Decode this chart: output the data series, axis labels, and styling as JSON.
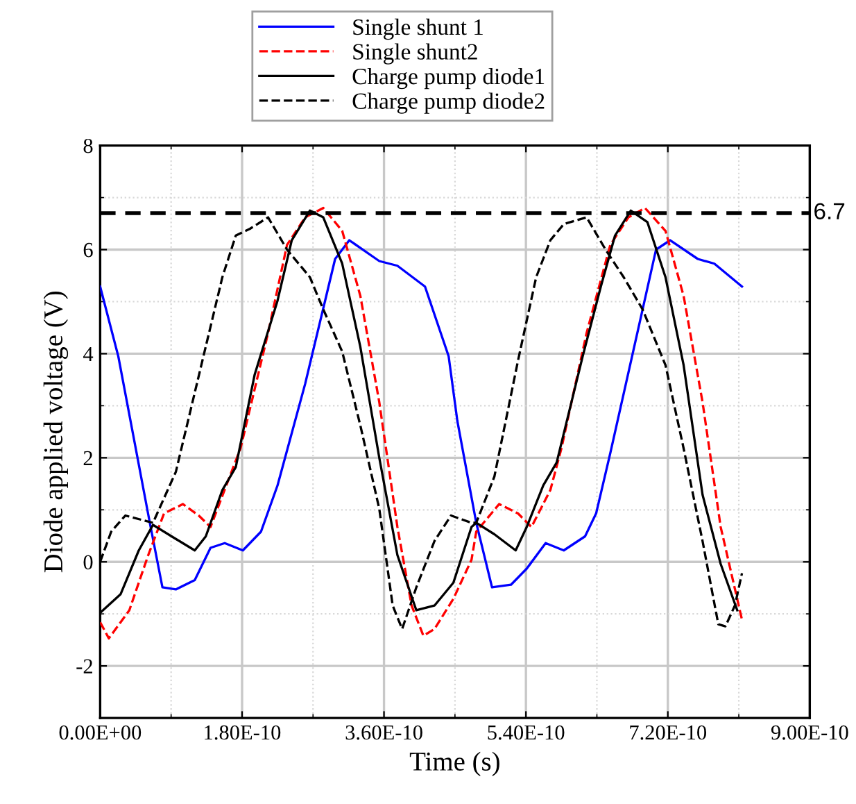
{
  "chart_data": {
    "type": "line",
    "xlabel": "Time (s)",
    "ylabel": "Diode applied voltage (V)",
    "xlim": [
      0,
      9e-10
    ],
    "xticks": [
      {
        "value": 0,
        "label": "0.00E+00"
      },
      {
        "value": 1.8e-10,
        "label": "1.80E-10"
      },
      {
        "value": 3.6e-10,
        "label": "3.60E-10"
      },
      {
        "value": 5.4e-10,
        "label": "5.40E-10"
      },
      {
        "value": 7.2e-10,
        "label": "7.20E-10"
      },
      {
        "value": 9e-10,
        "label": "9.00E-10"
      }
    ],
    "ylim": [
      -3,
      8
    ],
    "yticks": [
      -2,
      0,
      2,
      4,
      6,
      8
    ],
    "grid": true,
    "legend": "top",
    "ref_lines": [
      {
        "axis": "y",
        "value": 6.7,
        "label": "6.7",
        "color": "#000000",
        "line_style": "dashed"
      }
    ],
    "series": [
      {
        "name": "Single shunt 1",
        "color": "#0000ff",
        "line_style": "solid",
        "x": [
          0,
          2.3e-11,
          6.3e-11,
          7.9e-11,
          9.6e-11,
          1.2e-10,
          1.4e-10,
          1.58e-10,
          1.81e-10,
          2.04e-10,
          2.25e-10,
          2.6e-10,
          2.98e-10,
          3.16e-10,
          3.54e-10,
          3.77e-10,
          4.12e-10,
          4.42e-10,
          4.53e-10,
          4.77e-10,
          4.97e-10,
          5.21e-10,
          5.41e-10,
          5.65e-10,
          5.88e-10,
          6.15e-10,
          6.29e-10,
          6.47e-10,
          6.88e-10,
          7.05e-10,
          7.23e-10,
          7.58e-10,
          7.79e-10,
          8.14e-10
        ],
        "values": [
          5.29,
          3.95,
          0.75,
          -0.49,
          -0.53,
          -0.35,
          0.27,
          0.36,
          0.22,
          0.58,
          1.47,
          3.42,
          5.82,
          6.18,
          5.78,
          5.69,
          5.29,
          3.95,
          2.71,
          0.75,
          -0.49,
          -0.44,
          -0.13,
          0.36,
          0.22,
          0.49,
          0.93,
          2.09,
          4.85,
          6.0,
          6.18,
          5.82,
          5.73,
          5.29
        ]
      },
      {
        "name": "Single shunt2",
        "color": "#ff0000",
        "line_style": "dashed",
        "x": [
          0,
          1.1e-11,
          3.7e-11,
          6.1e-11,
          8.1e-11,
          1.05e-10,
          1.25e-10,
          1.4e-10,
          1.6e-10,
          1.78e-10,
          2.13e-10,
          2.37e-10,
          2.6e-10,
          2.83e-10,
          3.07e-10,
          3.3e-10,
          3.54e-10,
          3.77e-10,
          3.95e-10,
          4.1e-10,
          4.24e-10,
          4.48e-10,
          4.71e-10,
          4.77e-10,
          5.06e-10,
          5.3e-10,
          5.47e-10,
          5.71e-10,
          5.85e-10,
          6.17e-10,
          6.47e-10,
          6.7e-10,
          6.91e-10,
          7.17e-10,
          7.4e-10,
          7.64e-10,
          7.87e-10,
          8.14e-10
        ],
        "values": [
          -1.16,
          -1.47,
          -0.93,
          0.13,
          0.93,
          1.11,
          0.89,
          0.67,
          1.47,
          2.18,
          4.4,
          6.09,
          6.62,
          6.8,
          6.36,
          5.11,
          3.07,
          0.67,
          -0.84,
          -1.42,
          -1.29,
          -0.71,
          0.04,
          0.58,
          1.11,
          0.93,
          0.67,
          1.38,
          2.18,
          4.4,
          6.09,
          6.62,
          6.8,
          6.36,
          5.11,
          3.07,
          0.67,
          -1.11
        ]
      },
      {
        "name": "Charge pump diode1",
        "color": "#000000",
        "line_style": "solid",
        "x": [
          0,
          2.6e-11,
          4.9e-11,
          6.7e-11,
          9.6e-11,
          1.2e-10,
          1.34e-10,
          1.55e-10,
          1.72e-10,
          1.96e-10,
          2.25e-10,
          2.43e-10,
          2.66e-10,
          2.83e-10,
          3.07e-10,
          3.3e-10,
          3.54e-10,
          3.77e-10,
          4.01e-10,
          4.24e-10,
          4.48e-10,
          4.71e-10,
          4.77e-10,
          5e-10,
          5.27e-10,
          5.41e-10,
          5.62e-10,
          5.79e-10,
          6.12e-10,
          6.35e-10,
          6.53e-10,
          6.73e-10,
          6.94e-10,
          7.17e-10,
          7.4e-10,
          7.64e-10,
          7.87e-10,
          8.08e-10
        ],
        "values": [
          -0.98,
          -0.62,
          0.22,
          0.71,
          0.44,
          0.22,
          0.49,
          1.38,
          1.82,
          3.6,
          5.02,
          6.18,
          6.75,
          6.62,
          5.73,
          4.13,
          2.0,
          0.13,
          -0.93,
          -0.84,
          -0.4,
          0.67,
          0.75,
          0.53,
          0.22,
          0.67,
          1.47,
          1.91,
          3.95,
          5.29,
          6.27,
          6.75,
          6.53,
          5.47,
          3.78,
          1.29,
          -0.04,
          -0.93
        ]
      },
      {
        "name": "Charge pump diode2",
        "color": "#000000",
        "line_style": "dashed",
        "x": [
          0,
          1.4e-11,
          3.2e-11,
          6.7e-11,
          9.6e-11,
          1.31e-10,
          1.55e-10,
          1.72e-10,
          1.9e-10,
          2.13e-10,
          2.37e-10,
          2.66e-10,
          2.83e-10,
          3.07e-10,
          3.3e-10,
          3.54e-10,
          3.71e-10,
          3.83e-10,
          4.01e-10,
          4.24e-10,
          4.45e-10,
          4.71e-10,
          4.77e-10,
          5e-10,
          5.3e-10,
          5.53e-10,
          5.71e-10,
          5.88e-10,
          6.17e-10,
          6.41e-10,
          6.64e-10,
          6.88e-10,
          7.17e-10,
          7.4e-10,
          7.64e-10,
          7.84e-10,
          7.93e-10,
          8.05e-10,
          8.14e-10
        ],
        "values": [
          0,
          0.58,
          0.89,
          0.75,
          1.73,
          3.95,
          5.47,
          6.27,
          6.4,
          6.62,
          6.0,
          5.47,
          4.85,
          4.04,
          2.62,
          1.02,
          -0.84,
          -1.29,
          -0.49,
          0.4,
          0.89,
          0.75,
          0.75,
          1.64,
          3.87,
          5.47,
          6.18,
          6.49,
          6.62,
          6.0,
          5.47,
          4.85,
          3.78,
          2.18,
          0.4,
          -1.2,
          -1.24,
          -0.84,
          -0.22
        ]
      }
    ]
  }
}
